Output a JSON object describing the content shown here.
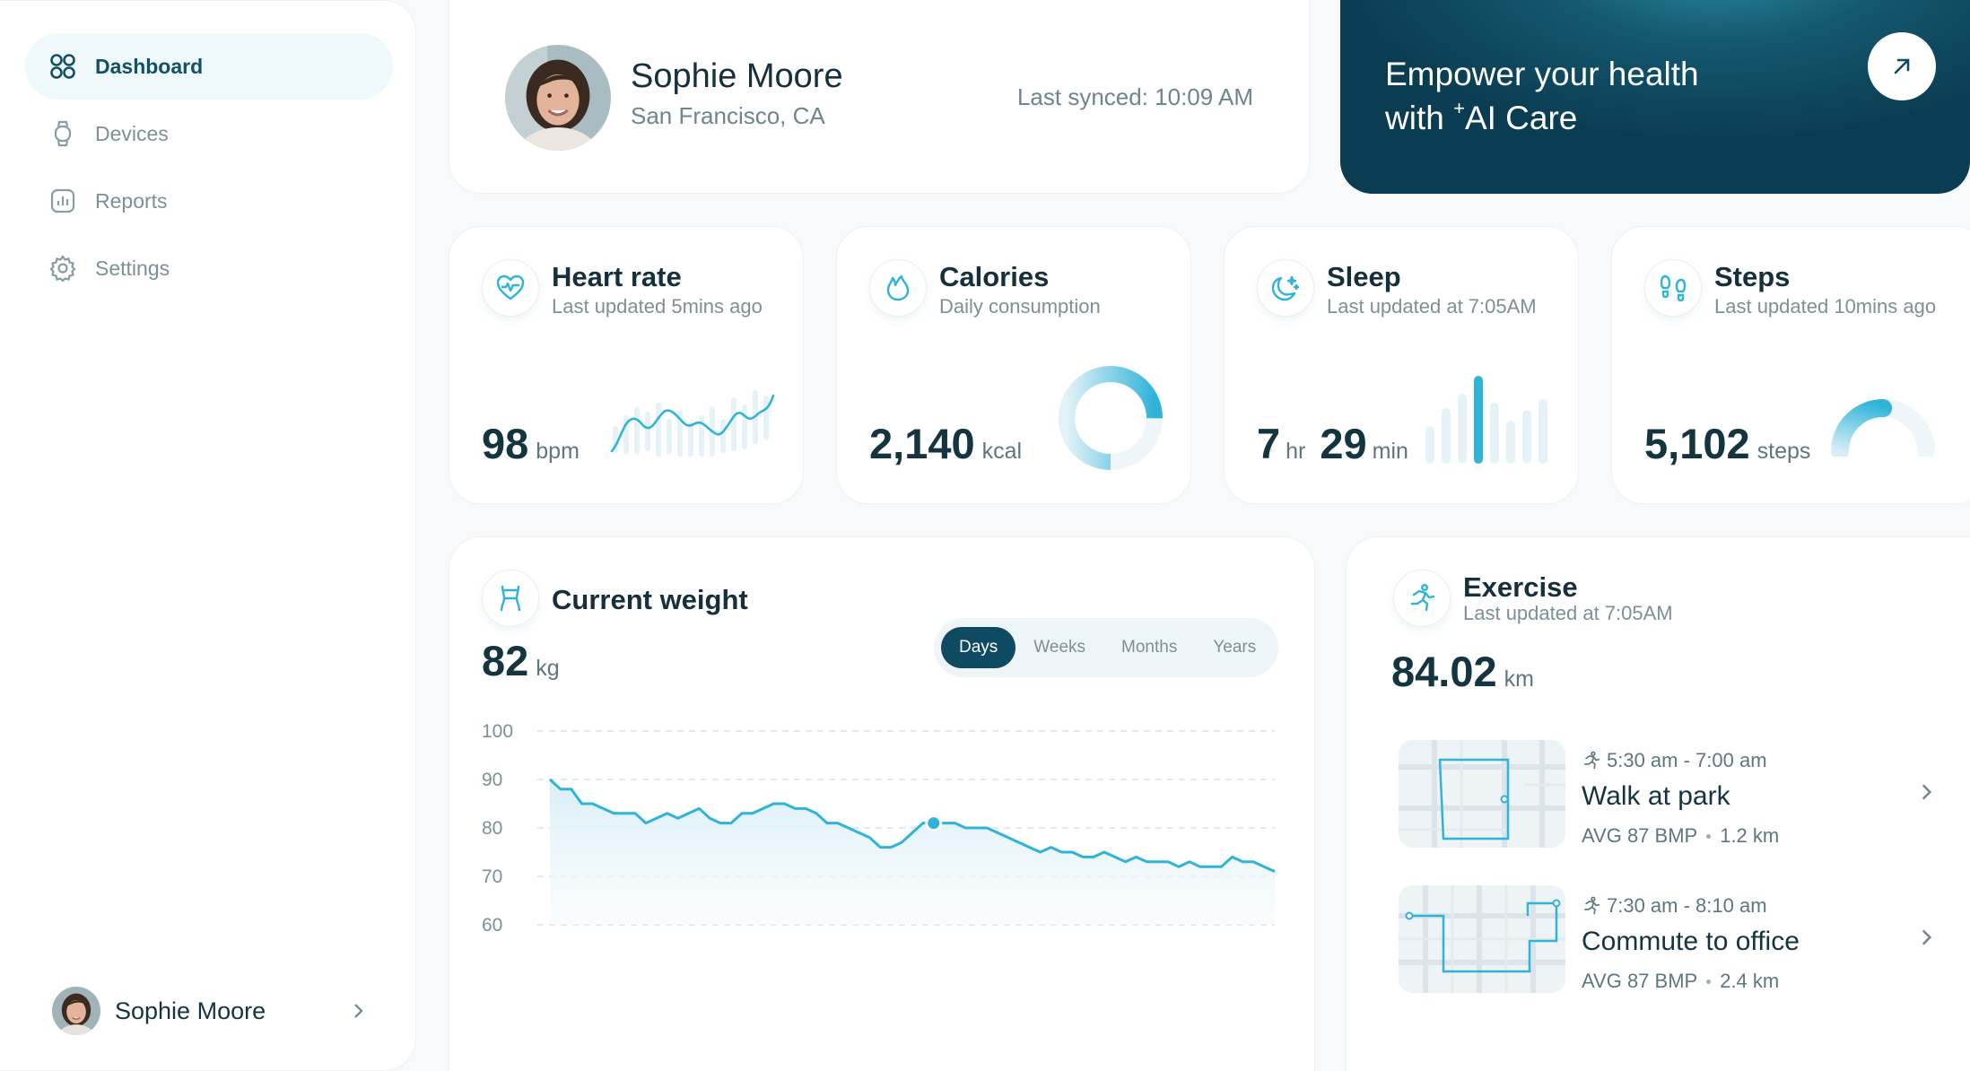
{
  "colors": {
    "accent": "#2fb3d9",
    "primary_dark": "#0f4a63",
    "muted": "#7d8f97"
  },
  "sidebar": {
    "items": [
      {
        "label": "Dashboard",
        "icon": "dashboard-icon",
        "active": true
      },
      {
        "label": "Devices",
        "icon": "watch-icon"
      },
      {
        "label": "Reports",
        "icon": "chart-icon"
      },
      {
        "label": "Settings",
        "icon": "gear-icon"
      }
    ],
    "user": {
      "name": "Sophie Moore"
    }
  },
  "profile": {
    "name": "Sophie Moore",
    "location": "San Francisco, CA",
    "last_synced": "Last synced: 10:09 AM"
  },
  "promo": {
    "line1": "Empower your health",
    "line2_prefix": "with ",
    "line2_mark": "+",
    "line2_suffix": "AI Care"
  },
  "metrics": {
    "heart": {
      "title": "Heart rate",
      "subtitle": "Last updated 5mins ago",
      "value": "98",
      "unit": "bpm"
    },
    "calories": {
      "title": "Calories",
      "subtitle": "Daily consumption",
      "value": "2,140",
      "unit": "kcal",
      "ring_fraction": 0.75
    },
    "sleep": {
      "title": "Sleep",
      "subtitle": "Last updated at 7:05AM",
      "hours": "7",
      "hours_unit": "hr",
      "minutes": "29",
      "minutes_unit": "min"
    },
    "steps": {
      "title": "Steps",
      "subtitle": "Last updated 10mins ago",
      "value": "5,102",
      "unit": "steps",
      "gauge_fraction": 0.5
    }
  },
  "weight": {
    "title": "Current weight",
    "value": "82",
    "unit": "kg",
    "tabs": [
      "Days",
      "Weeks",
      "Months",
      "Years"
    ],
    "active_tab": "Days",
    "chart_data": {
      "type": "area",
      "title": "Current weight",
      "xlabel": "",
      "ylabel": "",
      "ylim": [
        60,
        100
      ],
      "y_ticks": [
        100,
        90,
        80,
        70,
        60
      ],
      "grid": true,
      "values": [
        90,
        88,
        88,
        85,
        85,
        84,
        83,
        83,
        83,
        81,
        82,
        83,
        82,
        83,
        84,
        82,
        81,
        81,
        83,
        83,
        84,
        85,
        85,
        84,
        84,
        83,
        81,
        81,
        80,
        79,
        78,
        76,
        76,
        77,
        79,
        81,
        81,
        81,
        81,
        80,
        80,
        80,
        79,
        78,
        77,
        76,
        75,
        76,
        75,
        75,
        74,
        74,
        75,
        74,
        73,
        74,
        73,
        73,
        73,
        72,
        73,
        72,
        72,
        72,
        74,
        73,
        73,
        72,
        71
      ],
      "highlight_index": 36
    }
  },
  "exercise": {
    "title": "Exercise",
    "subtitle": "Last updated at 7:05AM",
    "value": "84.02",
    "unit": "km",
    "activities": [
      {
        "time": "5:30 am - 7:00 am",
        "name": "Walk at park",
        "avg": "AVG 87 BMP",
        "distance": "1.2 km"
      },
      {
        "time": "7:30 am - 8:10 am",
        "name": "Commute to office",
        "avg": "AVG 87 BMP",
        "distance": "2.4 km"
      }
    ]
  }
}
